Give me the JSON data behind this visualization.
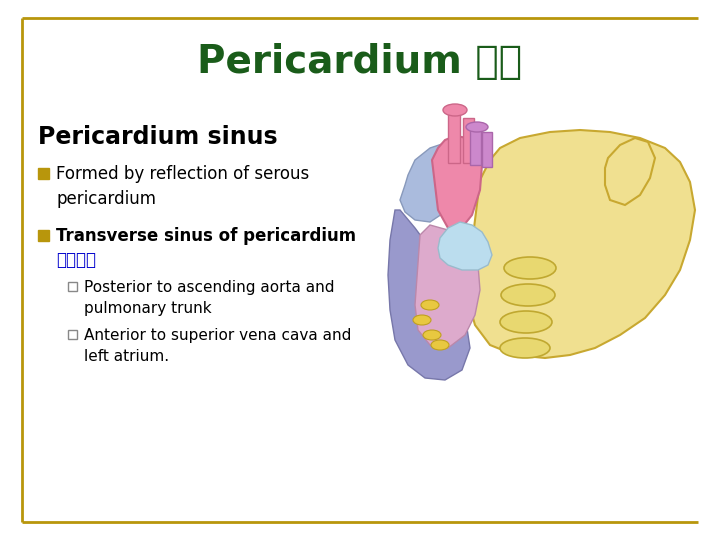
{
  "title": "Pericardium 心包",
  "title_color": "#1a5c1a",
  "title_fontsize": 28,
  "title_fontweight": "bold",
  "background_color": "#ffffff",
  "border_color": "#b8960c",
  "section_heading": "Pericardium sinus",
  "section_heading_fontsize": 17,
  "section_heading_fontweight": "bold",
  "section_heading_color": "#000000",
  "bullet_color": "#b8960c",
  "bullet1_text": "Formed by reflection of serous\npericardium",
  "bullet1_fontsize": 12,
  "bullet2_text": "Transverse sinus of pericardium",
  "bullet2_fontsize": 12,
  "bullet2_chinese": "心包橫竄",
  "bullet2_chinese_color": "#0000cc",
  "bullet2_chinese_fontsize": 12,
  "sub_bullet1": "Posterior to ascending aorta and\npulmonary trunk",
  "sub_bullet2": "Anterior to superior vena cava and\nleft atrium.",
  "sub_bullet_fontsize": 11,
  "sub_bullet_sq_color": "#888888"
}
